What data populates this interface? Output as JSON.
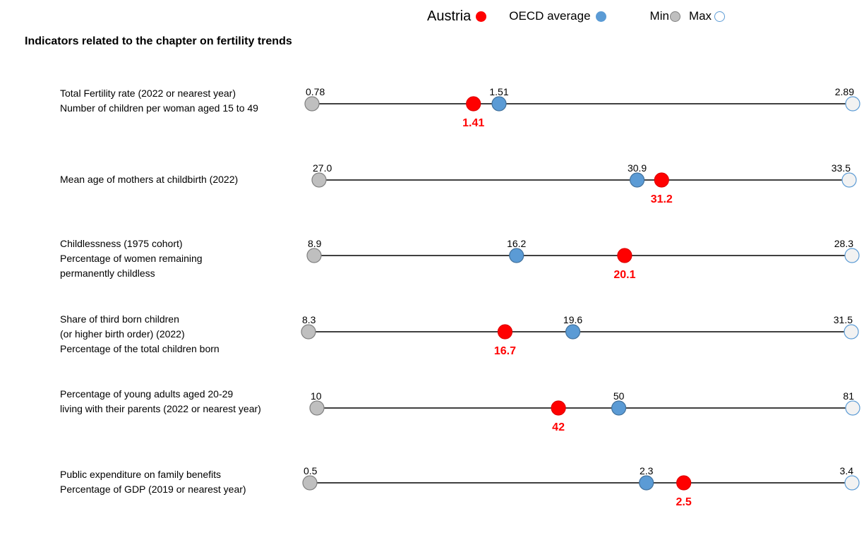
{
  "legend": {
    "austria_label": "Austria",
    "oecd_label": "OECD average",
    "min_label": "Min",
    "max_label": "Max"
  },
  "colors": {
    "austria": "#ff0000",
    "oecd": "#5b9bd5",
    "min": "#bfbfbf",
    "max": "#f2f2f2",
    "line": "#000000",
    "austria_value_text": "#ff0000"
  },
  "chart_data": {
    "type": "scatter",
    "title": "Indicators related to the chapter on fertility trends",
    "indicators": [
      {
        "label_lines": [
          "Total Fertility rate (2022 or nearest year)",
          "Number of children per woman aged 15 to 49"
        ],
        "min": "0.78",
        "max": "2.89",
        "oecd": "1.51",
        "austria": "1.41"
      },
      {
        "label_lines": [
          "Mean age of mothers at childbirth (2022)"
        ],
        "min": "27.0",
        "max": "33.5",
        "oecd": "30.9",
        "austria": "31.2"
      },
      {
        "label_lines": [
          "Childlessness (1975 cohort)",
          "Percentage of women remaining",
          "permanently childless"
        ],
        "min": "8.9",
        "max": "28.3",
        "oecd": "16.2",
        "austria": "20.1"
      },
      {
        "label_lines": [
          "Share of third born children",
          "(or higher birth order) (2022)",
          "Percentage of the total children born"
        ],
        "min": "8.3",
        "max": "31.5",
        "oecd": "19.6",
        "austria": "16.7"
      },
      {
        "label_lines": [
          "Percentage of young adults aged 20-29",
          "living with their parents (2022 or nearest year)"
        ],
        "min": "10",
        "max": "81",
        "oecd": "50",
        "austria": "42"
      },
      {
        "label_lines": [
          "Public expenditure on family benefits",
          "Percentage of GDP (2019 or nearest year)"
        ],
        "min": "0.5",
        "max": "3.4",
        "oecd": "2.3",
        "austria": "2.5"
      }
    ]
  }
}
